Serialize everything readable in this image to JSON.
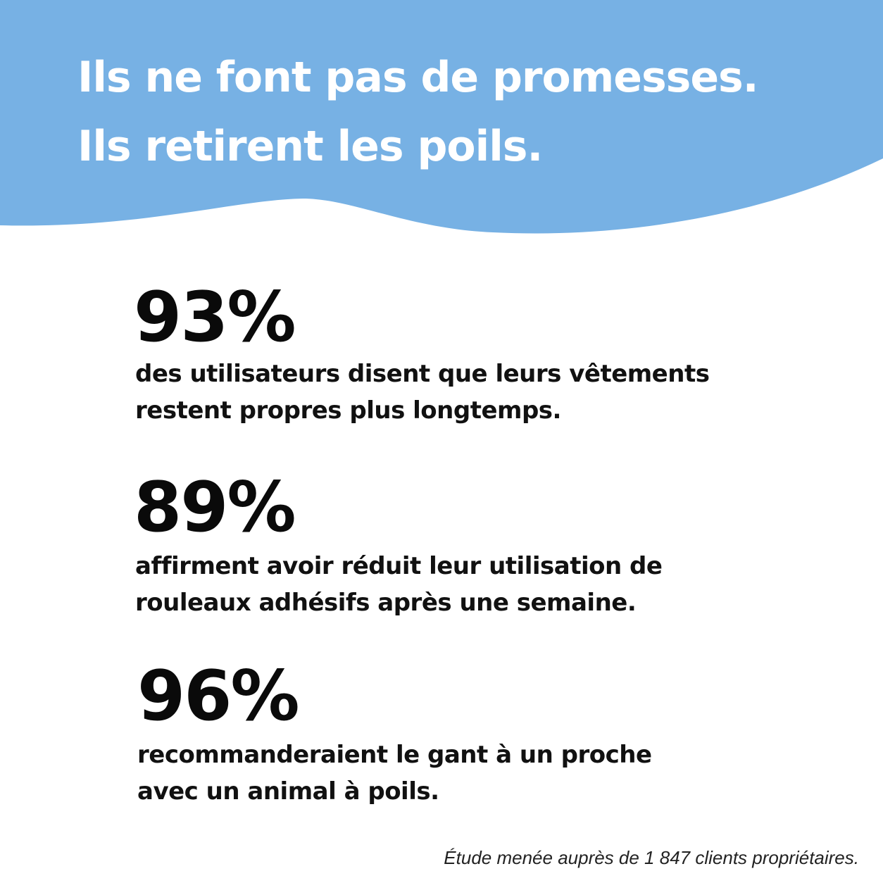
{
  "header": {
    "title": [
      "Ils ne font pas de promesses.",
      "Ils retirent les poils."
    ]
  },
  "stats": [
    {
      "value": "93%",
      "description": [
        "des utilisateurs disent que leurs vêtements",
        "restent propres plus longtemps."
      ]
    },
    {
      "value": "89%",
      "description": [
        "affirment avoir réduit leur utilisation de",
        "rouleaux adhésifs après une semaine."
      ]
    },
    {
      "value": "96%",
      "description": [
        "recommanderaient le gant à un proche",
        "avec un animal à poils."
      ]
    }
  ],
  "footnote": "Étude menée auprès de 1 847 clients propriétaires."
}
